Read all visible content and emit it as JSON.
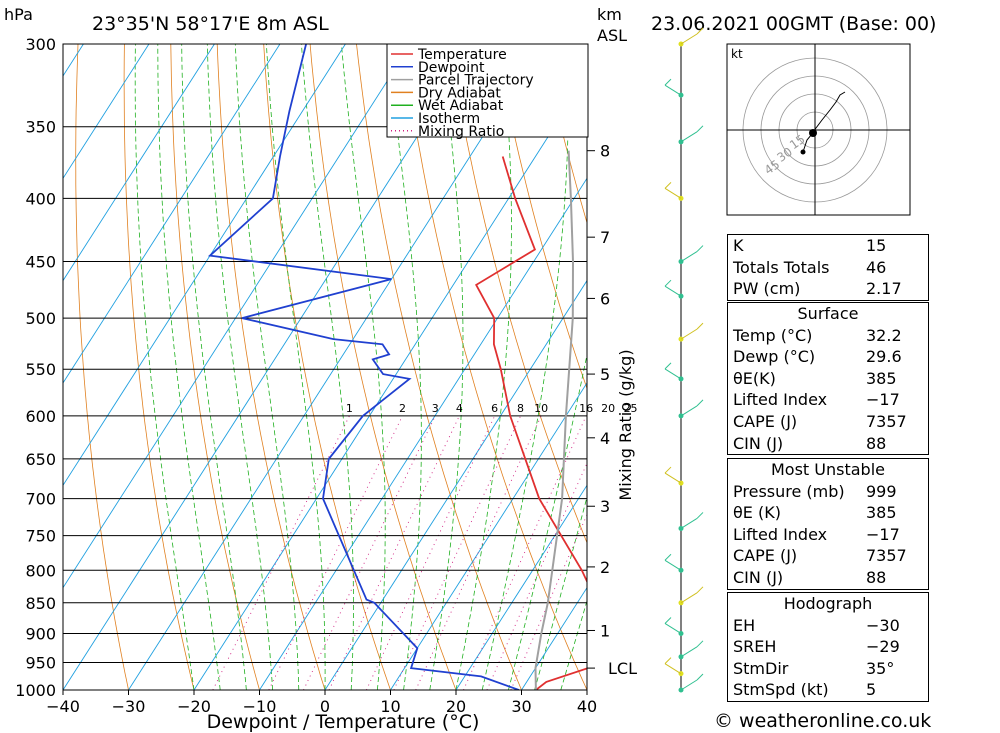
{
  "header": {
    "pressure_unit": "hPa",
    "location": "23°35'N  58°17'E  8m  ASL",
    "height_unit": "km",
    "height_ref": "ASL",
    "run": "23.06.2021  00GMT  (Base: 00)"
  },
  "footer": {
    "credit": "© weatheronline.co.uk"
  },
  "chart_data": {
    "type": "line",
    "subtype": "skew-T log-P sounding",
    "xlabel": "Dewpoint / Temperature (°C)",
    "ylabel": "hPa",
    "right_axis_label": "Mixing Ratio (g/kg)",
    "xlim": [
      -40,
      40
    ],
    "ylim": [
      1000,
      300
    ],
    "x_ticks": [
      -40,
      -30,
      -20,
      -10,
      0,
      10,
      20,
      30,
      40
    ],
    "pressure_ticks": [
      300,
      350,
      400,
      450,
      500,
      550,
      600,
      650,
      700,
      750,
      800,
      850,
      900,
      950,
      1000
    ],
    "height_ticks_km": [
      {
        "km": "8",
        "p": 366
      },
      {
        "km": "7",
        "p": 430
      },
      {
        "km": "6",
        "p": 482
      },
      {
        "km": "5",
        "p": 555
      },
      {
        "km": "4",
        "p": 625
      },
      {
        "km": "3",
        "p": 710
      },
      {
        "km": "2",
        "p": 795
      },
      {
        "km": "1",
        "p": 895
      },
      {
        "km": "LCL",
        "p": 960
      }
    ],
    "mixing_ratio_labels": [
      "1",
      "2",
      "3",
      "4",
      "6",
      "8",
      "10",
      "16",
      "20",
      "25"
    ],
    "legend": [
      "Temperature",
      "Dewpoint",
      "Parcel Trajectory",
      "Dry Adiabat",
      "Wet Adiabat",
      "Isotherm",
      "Mixing Ratio"
    ],
    "legend_position": "top-right",
    "series": [
      {
        "name": "Temperature",
        "color": "#e03030",
        "points": [
          {
            "p": 1000,
            "t": 32.2
          },
          {
            "p": 985,
            "t": 33.0
          },
          {
            "p": 960,
            "t": 38.0
          },
          {
            "p": 925,
            "t": 36.0
          },
          {
            "p": 850,
            "t": 33.0
          },
          {
            "p": 800,
            "t": 27.5
          },
          {
            "p": 700,
            "t": 14.0
          },
          {
            "p": 600,
            "t": 1.5
          },
          {
            "p": 550,
            "t": -4.5
          },
          {
            "p": 525,
            "t": -8.0
          },
          {
            "p": 500,
            "t": -10.5
          },
          {
            "p": 470,
            "t": -16.5
          },
          {
            "p": 440,
            "t": -11.0
          },
          {
            "p": 400,
            "t": -19.0
          },
          {
            "p": 370,
            "t": -25.0
          }
        ]
      },
      {
        "name": "Dewpoint",
        "color": "#2040d0",
        "points": [
          {
            "p": 1000,
            "t": 29.6
          },
          {
            "p": 975,
            "t": 22.5
          },
          {
            "p": 960,
            "t": 11.0
          },
          {
            "p": 925,
            "t": 10.0
          },
          {
            "p": 850,
            "t": -1.0
          },
          {
            "p": 845,
            "t": -2.5
          },
          {
            "p": 700,
            "t": -19.0
          },
          {
            "p": 650,
            "t": -22.0
          },
          {
            "p": 600,
            "t": -21.0
          },
          {
            "p": 560,
            "t": -17.5
          },
          {
            "p": 555,
            "t": -22.0
          },
          {
            "p": 540,
            "t": -25.0
          },
          {
            "p": 535,
            "t": -23.0
          },
          {
            "p": 525,
            "t": -25.0
          },
          {
            "p": 520,
            "t": -33.0
          },
          {
            "p": 500,
            "t": -49.0
          },
          {
            "p": 465,
            "t": -30.0
          },
          {
            "p": 445,
            "t": -60.0
          },
          {
            "p": 400,
            "t": -56.0
          },
          {
            "p": 370,
            "t": -59.0
          },
          {
            "p": 340,
            "t": -62.0
          },
          {
            "p": 300,
            "t": -66.0
          }
        ]
      },
      {
        "name": "Parcel Trajectory",
        "color": "#a0a0a0",
        "points": [
          {
            "p": 1000,
            "t": 32.2
          },
          {
            "p": 960,
            "t": 30.0
          },
          {
            "p": 900,
            "t": 27.5
          },
          {
            "p": 850,
            "t": 25.5
          },
          {
            "p": 800,
            "t": 23.0
          },
          {
            "p": 700,
            "t": 17.5
          },
          {
            "p": 600,
            "t": 10.0
          },
          {
            "p": 500,
            "t": 1.5
          },
          {
            "p": 450,
            "t": -4.0
          },
          {
            "p": 400,
            "t": -10.5
          },
          {
            "p": 366,
            "t": -15.5
          }
        ]
      }
    ]
  },
  "hodograph": {
    "unit": "kt",
    "ring_labels": [
      "15",
      "30",
      "45"
    ]
  },
  "indices": {
    "top": [
      {
        "label": "K",
        "value": "15"
      },
      {
        "label": "Totals Totals",
        "value": "46"
      },
      {
        "label": "PW (cm)",
        "value": "2.17"
      }
    ],
    "surface": {
      "title": "Surface",
      "rows": [
        {
          "label": "Temp (°C)",
          "value": "32.2"
        },
        {
          "label": "Dewp (°C)",
          "value": "29.6"
        },
        {
          "label": "θE(K)",
          "value": "385"
        },
        {
          "label": "Lifted Index",
          "value": "−17"
        },
        {
          "label": "CAPE (J)",
          "value": "7357"
        },
        {
          "label": "CIN (J)",
          "value": "88"
        }
      ]
    },
    "most_unstable": {
      "title": "Most Unstable",
      "rows": [
        {
          "label": "Pressure (mb)",
          "value": "999"
        },
        {
          "label": "θE (K)",
          "value": "385"
        },
        {
          "label": "Lifted Index",
          "value": "−17"
        },
        {
          "label": "CAPE (J)",
          "value": "7357"
        },
        {
          "label": "CIN (J)",
          "value": "88"
        }
      ]
    },
    "hodograph": {
      "title": "Hodograph",
      "rows": [
        {
          "label": "EH",
          "value": "−30"
        },
        {
          "label": "SREH",
          "value": "−29"
        },
        {
          "label": "StmDir",
          "value": "35°"
        },
        {
          "label": "StmSpd (kt)",
          "value": "5"
        }
      ]
    }
  },
  "colors": {
    "temperature": "#e03030",
    "dewpoint": "#2040d0",
    "parcel": "#a0a0a0",
    "dry_adiabat": "#e08020",
    "wet_adiabat": "#20b020",
    "isotherm": "#20a0e0",
    "mixing_ratio": "#d02080",
    "wind": "#30c090"
  }
}
